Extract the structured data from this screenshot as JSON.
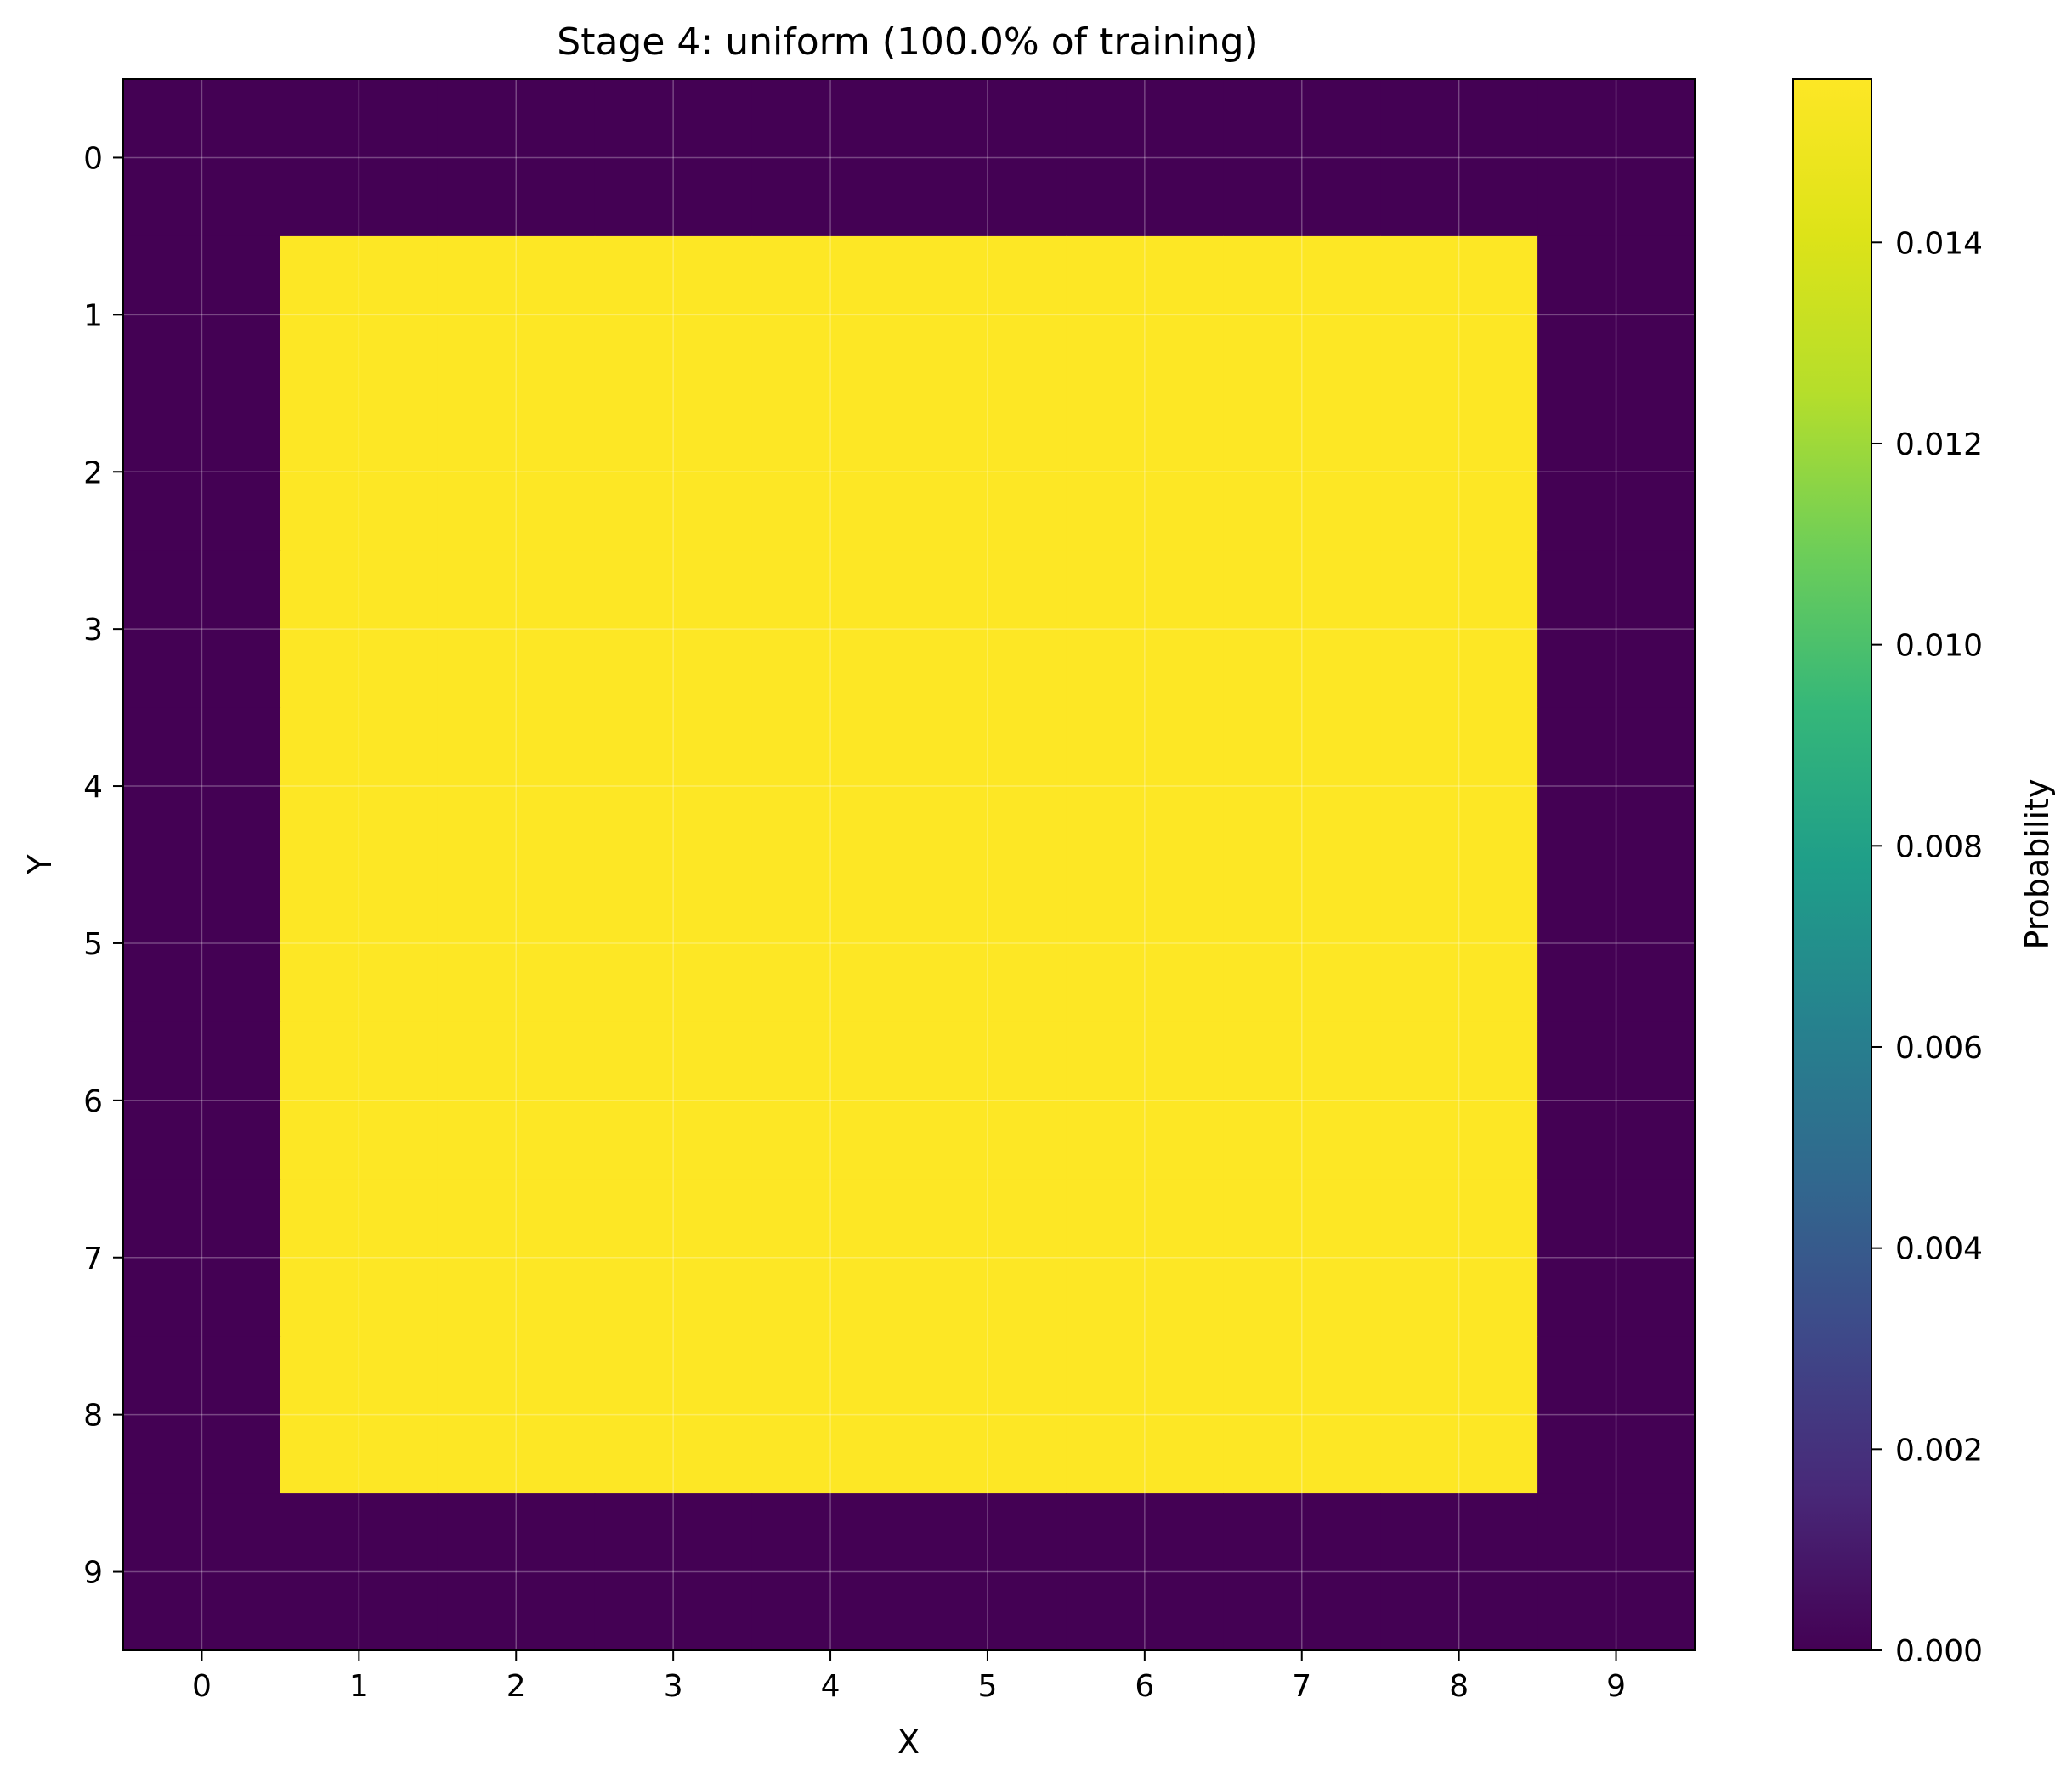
{
  "chart_data": {
    "type": "heatmap",
    "title": "Stage 4: uniform (100.0% of training)",
    "xlabel": "X",
    "ylabel": "Y",
    "x": [
      0,
      1,
      2,
      3,
      4,
      5,
      6,
      7,
      8,
      9
    ],
    "y": [
      0,
      1,
      2,
      3,
      4,
      5,
      6,
      7,
      8,
      9
    ],
    "xlim": [
      -0.5,
      9.5
    ],
    "ylim": [
      9.5,
      -0.5
    ],
    "y_axis_inverted": true,
    "grid": true,
    "values": [
      [
        0,
        0,
        0,
        0,
        0,
        0,
        0,
        0,
        0,
        0
      ],
      [
        0,
        0.015625,
        0.015625,
        0.015625,
        0.015625,
        0.015625,
        0.015625,
        0.015625,
        0.015625,
        0
      ],
      [
        0,
        0.015625,
        0.015625,
        0.015625,
        0.015625,
        0.015625,
        0.015625,
        0.015625,
        0.015625,
        0
      ],
      [
        0,
        0.015625,
        0.015625,
        0.015625,
        0.015625,
        0.015625,
        0.015625,
        0.015625,
        0.015625,
        0
      ],
      [
        0,
        0.015625,
        0.015625,
        0.015625,
        0.015625,
        0.015625,
        0.015625,
        0.015625,
        0.015625,
        0
      ],
      [
        0,
        0.015625,
        0.015625,
        0.015625,
        0.015625,
        0.015625,
        0.015625,
        0.015625,
        0.015625,
        0
      ],
      [
        0,
        0.015625,
        0.015625,
        0.015625,
        0.015625,
        0.015625,
        0.015625,
        0.015625,
        0.015625,
        0
      ],
      [
        0,
        0.015625,
        0.015625,
        0.015625,
        0.015625,
        0.015625,
        0.015625,
        0.015625,
        0.015625,
        0
      ],
      [
        0,
        0.015625,
        0.015625,
        0.015625,
        0.015625,
        0.015625,
        0.015625,
        0.015625,
        0.015625,
        0
      ],
      [
        0,
        0,
        0,
        0,
        0,
        0,
        0,
        0,
        0,
        0
      ]
    ],
    "colorbar": {
      "label": "Probability",
      "colormap": "viridis",
      "range": [
        0,
        0.015625
      ],
      "ticks": [
        0.0,
        0.002,
        0.004,
        0.006,
        0.008,
        0.01,
        0.012,
        0.014
      ],
      "tick_labels": [
        "0.000",
        "0.002",
        "0.004",
        "0.006",
        "0.008",
        "0.010",
        "0.012",
        "0.014"
      ]
    },
    "colors": {
      "low": "#440154",
      "high": "#fde725"
    }
  }
}
